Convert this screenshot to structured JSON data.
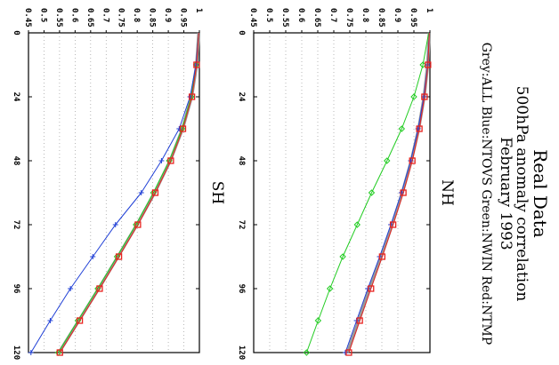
{
  "title": {
    "line1": "Real Data",
    "line2": "500hPa anomaly correlation",
    "line3": "February 1993",
    "line4": "Grey:ALL   Blue:NTOVS  Green:NWIN  Red:NTMP"
  },
  "chart_data": [
    {
      "type": "line",
      "panel": "NH",
      "title": "NH",
      "x": [
        0,
        12,
        24,
        36,
        48,
        60,
        72,
        84,
        96,
        108,
        120
      ],
      "x_ticks": [
        "0",
        "24",
        "48",
        "72",
        "96",
        "120"
      ],
      "y_ticks": [
        "1",
        "0.95",
        "0.9",
        "0.85",
        "0.8",
        "0.75",
        "0.7",
        "0.65",
        "0.6",
        "0.55",
        "0.5",
        "0.45"
      ],
      "xlim": [
        0,
        120
      ],
      "ylim": [
        0.45,
        1.0
      ],
      "grid": true,
      "series": [
        {
          "name": "ALL",
          "color": "#999999",
          "marker": "none",
          "values": [
            0.998,
            0.993,
            0.982,
            0.965,
            0.942,
            0.914,
            0.882,
            0.848,
            0.812,
            0.778,
            0.743
          ]
        },
        {
          "name": "NTOVS",
          "color": "#1f3fd6",
          "marker": "plus",
          "values": [
            0.998,
            0.993,
            0.981,
            0.963,
            0.94,
            0.911,
            0.878,
            0.843,
            0.806,
            0.771,
            0.736
          ]
        },
        {
          "name": "NWIN",
          "color": "#22cc22",
          "marker": "diamond",
          "values": [
            0.996,
            0.978,
            0.95,
            0.912,
            0.866,
            0.818,
            0.773,
            0.728,
            0.688,
            0.651,
            0.615
          ]
        },
        {
          "name": "NTMP",
          "color": "#e8231f",
          "marker": "square",
          "values": [
            0.998,
            0.994,
            0.983,
            0.967,
            0.945,
            0.917,
            0.885,
            0.851,
            0.816,
            0.781,
            0.747
          ]
        }
      ]
    },
    {
      "type": "line",
      "panel": "SH",
      "title": "SH",
      "x": [
        0,
        12,
        24,
        36,
        48,
        60,
        72,
        84,
        96,
        108,
        120
      ],
      "x_ticks": [
        "0",
        "24",
        "48",
        "72",
        "96",
        "120"
      ],
      "y_ticks": [
        "1",
        "0.95",
        "0.9",
        "0.85",
        "0.8",
        "0.75",
        "0.7",
        "0.65",
        "0.6",
        "0.55",
        "0.5",
        "0.45"
      ],
      "xlim": [
        0,
        120
      ],
      "ylim": [
        0.45,
        1.0
      ],
      "grid": true,
      "series": [
        {
          "name": "ALL",
          "color": "#999999",
          "marker": "none",
          "values": [
            0.998,
            0.991,
            0.975,
            0.946,
            0.906,
            0.856,
            0.799,
            0.738,
            0.676,
            0.612,
            0.548
          ]
        },
        {
          "name": "NTOVS",
          "color": "#1f3fd6",
          "marker": "plus",
          "values": [
            0.998,
            0.989,
            0.97,
            0.935,
            0.878,
            0.813,
            0.73,
            0.657,
            0.585,
            0.52,
            0.458
          ]
        },
        {
          "name": "NWIN",
          "color": "#22cc22",
          "marker": "diamond",
          "values": [
            0.998,
            0.99,
            0.974,
            0.944,
            0.903,
            0.852,
            0.796,
            0.735,
            0.673,
            0.609,
            0.546
          ]
        },
        {
          "name": "NTMP",
          "color": "#e8231f",
          "marker": "square",
          "values": [
            0.998,
            0.991,
            0.976,
            0.947,
            0.908,
            0.858,
            0.802,
            0.741,
            0.679,
            0.615,
            0.551
          ]
        }
      ]
    }
  ]
}
